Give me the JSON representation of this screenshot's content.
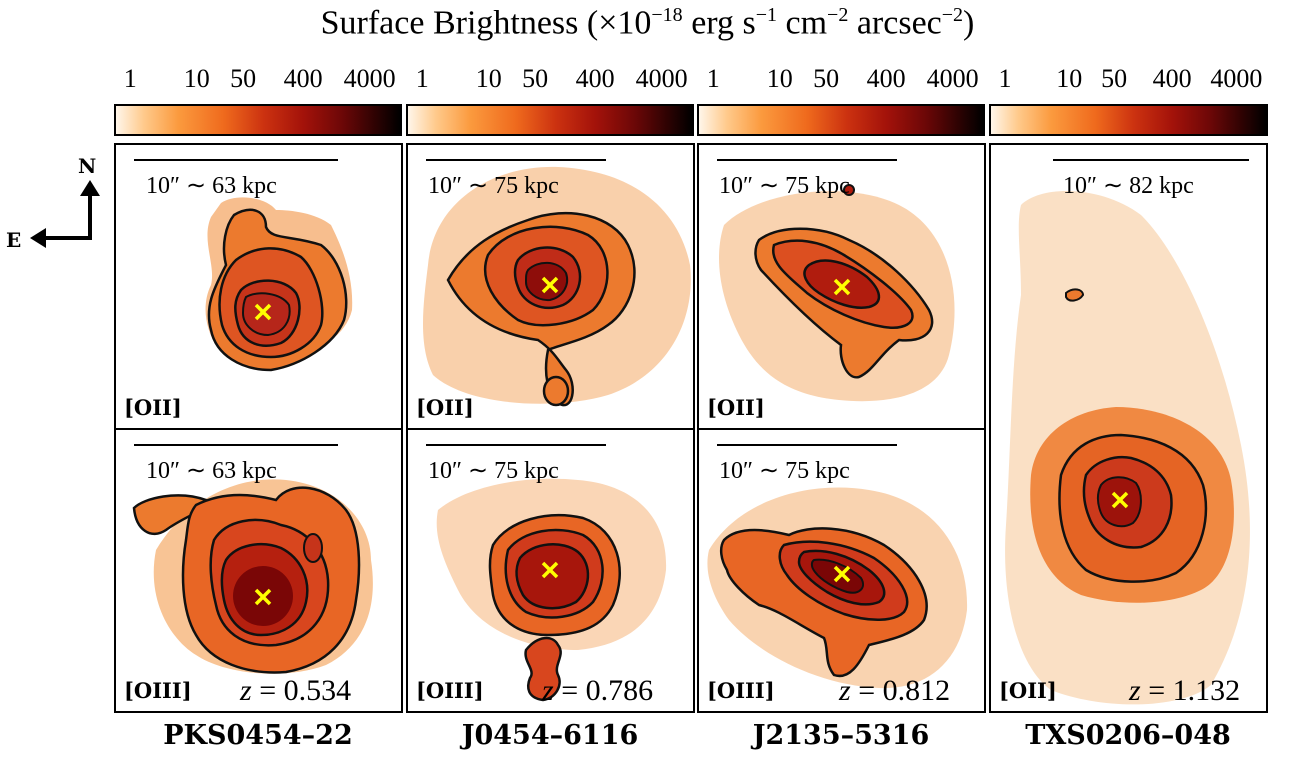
{
  "title": {
    "main": "Surface Brightness (×10",
    "exp1": "−18",
    "mid": " erg s",
    "exp2": "−1",
    "mid2": " cm",
    "exp3": "−2",
    "mid3": " arcsec",
    "exp4": "−2",
    "end": ")"
  },
  "colorbar": {
    "ticks": [
      "1",
      "10",
      "50",
      "400",
      "4000"
    ],
    "colormap": [
      "#fff6ea",
      "#ffc98a",
      "#fb9a3e",
      "#ef6a1d",
      "#cc3210",
      "#a3120a",
      "#6b0707",
      "#2a0202",
      "#000000"
    ]
  },
  "compass": {
    "north": "N",
    "east": "E"
  },
  "panels": {
    "pks_oii": {
      "scale": "10″ ∼ 63 kpc",
      "line": "[OII]"
    },
    "pks_oiii": {
      "scale": "10″ ∼ 63 kpc",
      "line": "[OIII]",
      "z": "= 0.534",
      "z_symbol": "z"
    },
    "j0454_oii": {
      "scale": "10″ ∼ 75 kpc",
      "line": "[OII]"
    },
    "j0454_oiii": {
      "scale": "10″ ∼ 75 kpc",
      "line": "[OIII]",
      "z": "= 0.786",
      "z_symbol": "z"
    },
    "j2135_oii": {
      "scale": "10″ ∼ 75 kpc",
      "line": "[OII]"
    },
    "j2135_oiii": {
      "scale": "10″ ∼ 75 kpc",
      "line": "[OIII]",
      "z": "= 0.812",
      "z_symbol": "z"
    },
    "txs_oii": {
      "scale": "10″ ∼ 82 kpc",
      "line": "[OII]",
      "z": "= 1.132",
      "z_symbol": "z"
    }
  },
  "objects": [
    "PKS0454–22",
    "J0454–6116",
    "J2135–5316",
    "TXS0206–048"
  ],
  "marker_color": "#ffff00"
}
